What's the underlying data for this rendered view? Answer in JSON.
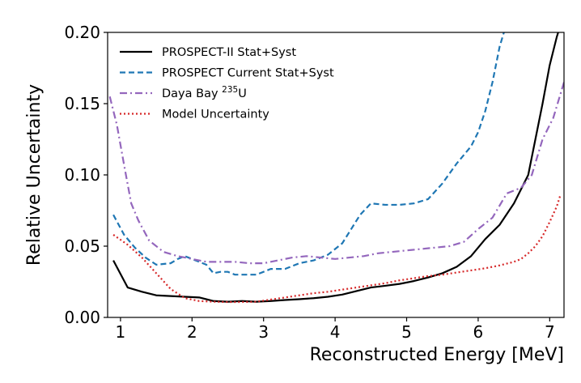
{
  "chart_data": {
    "type": "line",
    "xlabel": "Reconstructed Energy [MeV]",
    "ylabel": "Relative Uncertainty",
    "xlim": [
      0.82,
      7.2
    ],
    "ylim": [
      0.0,
      0.2
    ],
    "xticks": [
      1,
      2,
      3,
      4,
      5,
      6,
      7
    ],
    "yticks": [
      0.0,
      0.05,
      0.1,
      0.15,
      0.2
    ],
    "xtick_labels": [
      "1",
      "2",
      "3",
      "4",
      "5",
      "6",
      "7"
    ],
    "ytick_labels": [
      "0.00",
      "0.05",
      "0.10",
      "0.15",
      "0.20"
    ],
    "grid": false,
    "legend_position": "top-left",
    "series": [
      {
        "name": "PROSPECT-II Stat+Syst",
        "label_parts": [
          "PROSPECT-II Stat+Syst"
        ],
        "color": "#000000",
        "style": "solid",
        "x": [
          0.9,
          1.1,
          1.3,
          1.5,
          1.7,
          1.9,
          2.1,
          2.3,
          2.5,
          2.7,
          2.9,
          3.1,
          3.3,
          3.5,
          3.7,
          3.9,
          4.1,
          4.3,
          4.5,
          4.7,
          4.9,
          5.1,
          5.3,
          5.5,
          5.7,
          5.9,
          6.1,
          6.3,
          6.5,
          6.7,
          6.8,
          6.9,
          7.0,
          7.1,
          7.15
        ],
        "y": [
          0.04,
          0.021,
          0.018,
          0.0155,
          0.015,
          0.0145,
          0.014,
          0.0115,
          0.011,
          0.0115,
          0.011,
          0.0115,
          0.0122,
          0.0128,
          0.0135,
          0.0145,
          0.016,
          0.0185,
          0.021,
          0.0222,
          0.0235,
          0.0255,
          0.028,
          0.031,
          0.0355,
          0.043,
          0.055,
          0.065,
          0.08,
          0.1,
          0.125,
          0.15,
          0.177,
          0.197,
          0.205
        ]
      },
      {
        "name": "PROSPECT Current Stat+Syst",
        "label_parts": [
          "PROSPECT Current Stat+Syst"
        ],
        "color": "#1f77b4",
        "style": "dashed",
        "x": [
          0.9,
          1.05,
          1.2,
          1.35,
          1.5,
          1.7,
          1.8,
          1.9,
          2.05,
          2.2,
          2.3,
          2.4,
          2.5,
          2.6,
          2.7,
          2.9,
          3.1,
          3.3,
          3.5,
          3.7,
          3.9,
          4.1,
          4.2,
          4.35,
          4.5,
          4.7,
          4.9,
          5.1,
          5.3,
          5.5,
          5.7,
          5.9,
          6.0,
          6.1,
          6.2,
          6.3,
          6.36
        ],
        "y": [
          0.072,
          0.058,
          0.049,
          0.042,
          0.037,
          0.038,
          0.041,
          0.043,
          0.04,
          0.037,
          0.031,
          0.032,
          0.032,
          0.03,
          0.03,
          0.03,
          0.034,
          0.034,
          0.038,
          0.04,
          0.044,
          0.052,
          0.06,
          0.072,
          0.08,
          0.079,
          0.079,
          0.08,
          0.083,
          0.094,
          0.108,
          0.12,
          0.13,
          0.145,
          0.165,
          0.19,
          0.2
        ]
      },
      {
        "name": "Daya Bay 235U",
        "label_parts": [
          "Daya Bay ",
          "235",
          "U"
        ],
        "color": "#9467bd",
        "style": "dashdot",
        "x": [
          0.85,
          0.95,
          1.05,
          1.15,
          1.25,
          1.4,
          1.6,
          1.8,
          2.0,
          2.2,
          2.4,
          2.6,
          2.8,
          3.0,
          3.2,
          3.4,
          3.6,
          3.8,
          4.0,
          4.2,
          4.4,
          4.6,
          4.8,
          5.0,
          5.2,
          5.4,
          5.6,
          5.8,
          6.0,
          6.2,
          6.4,
          6.6,
          6.75,
          6.9,
          7.05,
          7.2
        ],
        "y": [
          0.155,
          0.135,
          0.107,
          0.08,
          0.068,
          0.054,
          0.046,
          0.043,
          0.041,
          0.039,
          0.039,
          0.039,
          0.038,
          0.038,
          0.04,
          0.042,
          0.043,
          0.042,
          0.041,
          0.042,
          0.043,
          0.045,
          0.046,
          0.047,
          0.048,
          0.049,
          0.05,
          0.053,
          0.062,
          0.07,
          0.087,
          0.091,
          0.1,
          0.125,
          0.14,
          0.165
        ]
      },
      {
        "name": "Model Uncertainty",
        "label_parts": [
          "Model Uncertainty"
        ],
        "color": "#d62728",
        "style": "dotted",
        "x": [
          0.9,
          1.1,
          1.3,
          1.5,
          1.7,
          1.9,
          2.1,
          2.3,
          2.5,
          2.7,
          2.9,
          3.1,
          3.3,
          3.5,
          3.7,
          3.9,
          4.1,
          4.3,
          4.5,
          4.7,
          4.9,
          5.1,
          5.3,
          5.5,
          5.7,
          5.9,
          6.1,
          6.3,
          6.5,
          6.6,
          6.7,
          6.8,
          6.9,
          7.0,
          7.1,
          7.15
        ],
        "y": [
          0.058,
          0.051,
          0.042,
          0.031,
          0.02,
          0.0135,
          0.0115,
          0.011,
          0.0108,
          0.0108,
          0.011,
          0.0125,
          0.014,
          0.0155,
          0.017,
          0.018,
          0.0195,
          0.021,
          0.0225,
          0.024,
          0.026,
          0.0275,
          0.029,
          0.03,
          0.0315,
          0.033,
          0.0345,
          0.0365,
          0.039,
          0.041,
          0.045,
          0.05,
          0.057,
          0.067,
          0.078,
          0.086
        ]
      }
    ]
  }
}
